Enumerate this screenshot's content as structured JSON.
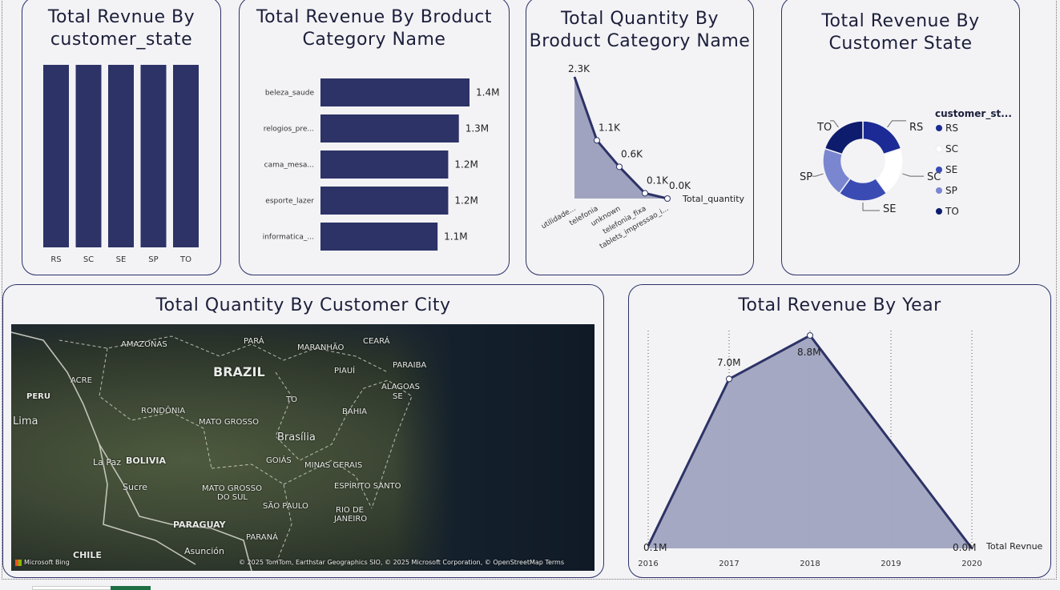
{
  "charts": {
    "state_bar": {
      "title_line1": "Total Revnue By",
      "title_line2": "customer_state"
    },
    "category_bar": {
      "title_line1": "Total Revenue By Broduct",
      "title_line2": "Category Name"
    },
    "quantity_area": {
      "title_line1": "Total Quantity By",
      "title_line2": "Broduct Category Name",
      "series_label": "Total_quantity"
    },
    "state_donut": {
      "title_line1": "Total Revenue By",
      "title_line2": "Customer State",
      "legend_title": "customer_st..."
    },
    "city_map": {
      "title": "Total Quantity By Customer City",
      "bing_logo": "Microsoft Bing",
      "attribution": "© 2025 TomTom, Earthstar Geographics SIO, © 2025 Microsoft Corporation, © OpenStreetMap  Terms",
      "labels": {
        "amazonas": "AMAZONAS",
        "para": "PARÁ",
        "maranhao": "MARANHÃO",
        "ceara": "CEARÁ",
        "brazil": "BRAZIL",
        "piaui": "PIAUÍ",
        "paraiba": "PARAIBA",
        "peru": "PERU",
        "acre": "ACRE",
        "alagoas": "ALAGOAS",
        "se": "SE",
        "lima": "Lima",
        "to": "TO",
        "rondonia": "RONDÔNIA",
        "bahia": "BAHIA",
        "mato_grosso": "MATO GROSSO",
        "brasilia": "Brasília",
        "goias": "GOIÁS",
        "bolivia": "BOLIVIA",
        "la_paz": "La Paz",
        "minas_gerais": "MINAS GERAIS",
        "sucre": "Sucre",
        "espirito_santo": "ESPÍRITO SANTO",
        "mato_grosso_sul_1": "MATO GROSSO",
        "mato_grosso_sul_2": "DO SUL",
        "sao_paulo": "SÃO PAULO",
        "rio_1": "RIO DE",
        "rio_2": "JANEIRO",
        "paraguay": "PARAGUAY",
        "parana": "PARANÁ",
        "chile": "CHILE",
        "asuncion": "Asunción"
      }
    },
    "year_area": {
      "title": "Total Revenue By Year",
      "series_label": "Total Revnue"
    }
  },
  "chart_data": [
    {
      "type": "bar",
      "title": "Total Revnue By customer_state",
      "categories": [
        "RS",
        "SC",
        "SE",
        "SP",
        "TO"
      ],
      "values": [
        1,
        1,
        1,
        1,
        1
      ]
    },
    {
      "type": "bar",
      "orientation": "horizontal",
      "title": "Total Revenue By Broduct Category Name",
      "categories": [
        "beleza_saude",
        "relogios_pre...",
        "cama_mesa...",
        "esporte_lazer",
        "informatica_..."
      ],
      "values": [
        1.4,
        1.3,
        1.2,
        1.2,
        1.1
      ],
      "data_labels": [
        "1.4M",
        "1.3M",
        "1.2M",
        "1.2M",
        "1.1M"
      ],
      "unit": "M"
    },
    {
      "type": "area",
      "title": "Total Quantity By Broduct Category Name",
      "categories": [
        "utilidade...",
        "telefonia",
        "unknown",
        "telefonia_fixa",
        "tablets_impressao_i..."
      ],
      "values": [
        2.3,
        1.1,
        0.6,
        0.1,
        0.0
      ],
      "data_labels": [
        "2.3K",
        "1.1K",
        "0.6K",
        "0.1K",
        "0.0K"
      ],
      "unit": "K",
      "series": [
        {
          "name": "Total_quantity",
          "values": [
            2.3,
            1.1,
            0.6,
            0.1,
            0.0
          ]
        }
      ]
    },
    {
      "type": "pie",
      "variant": "donut",
      "title": "Total Revenue By Customer State",
      "categories": [
        "RS",
        "SC",
        "SE",
        "SP",
        "TO"
      ],
      "values": [
        20,
        20,
        20,
        20,
        20
      ],
      "colors": [
        "#1b2a94",
        "#ffffff",
        "#3a4cb4",
        "#7a86cf",
        "#0e1c6e"
      ],
      "legend_title": "customer_st...",
      "legend_position": "right"
    },
    {
      "type": "area",
      "title": "Total Revenue By Year",
      "x": [
        "2016",
        "2017",
        "2018",
        "2019",
        "2020"
      ],
      "values": [
        0.1,
        7.0,
        8.8,
        null,
        0.0
      ],
      "data_labels": [
        "0.1M",
        "7.0M",
        "8.8M",
        "",
        "0.0M"
      ],
      "unit": "M",
      "series": [
        {
          "name": "Total Revnue",
          "values": [
            0.1,
            7.0,
            8.8,
            null,
            0.0
          ]
        }
      ],
      "grid": "vertical dotted"
    }
  ]
}
